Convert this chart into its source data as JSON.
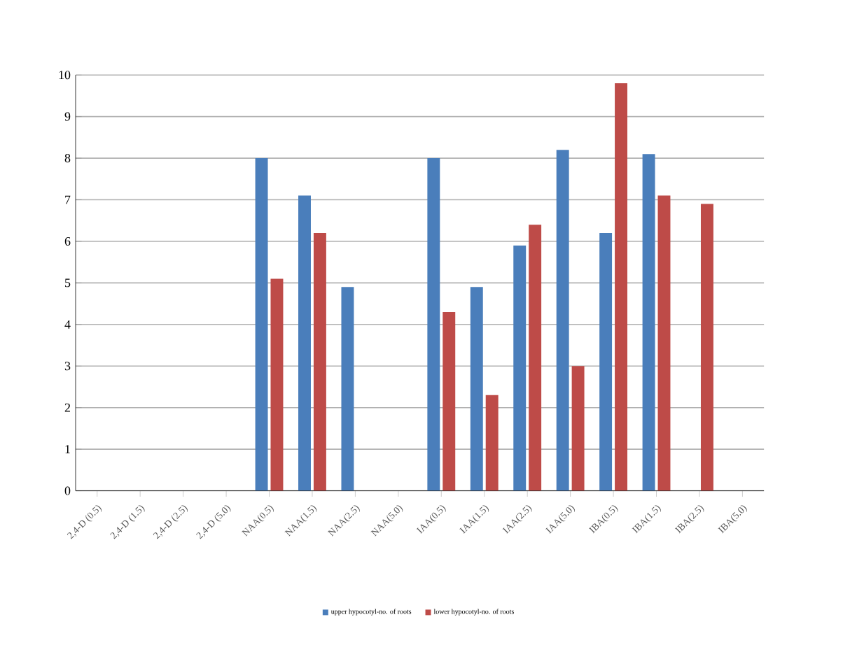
{
  "chart_data": {
    "type": "bar",
    "categories": [
      "2,4-D (0.5)",
      "2,4-D (1.5)",
      "2,4-D (2.5)",
      "2,4-D (5.0)",
      "NAA(0.5)",
      "NAA(1.5)",
      "NAA(2.5)",
      "NAA(5.0)",
      "IAA(0.5)",
      "IAA(1.5)",
      "IAA(2.5)",
      "IAA(5.0)",
      "IBA(0.5)",
      "IBA(1.5)",
      "IBA(2.5)",
      "IBA(5.0)"
    ],
    "series": [
      {
        "name": "upper hypocotyl-no. of roots",
        "color": "#4a7ebb",
        "values": [
          0,
          0,
          0,
          0,
          8.0,
          7.1,
          4.9,
          0,
          8.0,
          4.9,
          5.9,
          8.2,
          6.2,
          8.1,
          0,
          0
        ]
      },
      {
        "name": "lower hypocotyl-no. of roots",
        "color": "#be4b48",
        "values": [
          0,
          0,
          0,
          0,
          5.1,
          6.2,
          0,
          0,
          4.3,
          2.3,
          6.4,
          3.0,
          9.8,
          7.1,
          6.9,
          0
        ]
      }
    ],
    "ylim": [
      0,
      10
    ],
    "yticks": [
      0,
      1,
      2,
      3,
      4,
      5,
      6,
      7,
      8,
      9,
      10
    ],
    "grid": "y",
    "legend": "bottom"
  }
}
